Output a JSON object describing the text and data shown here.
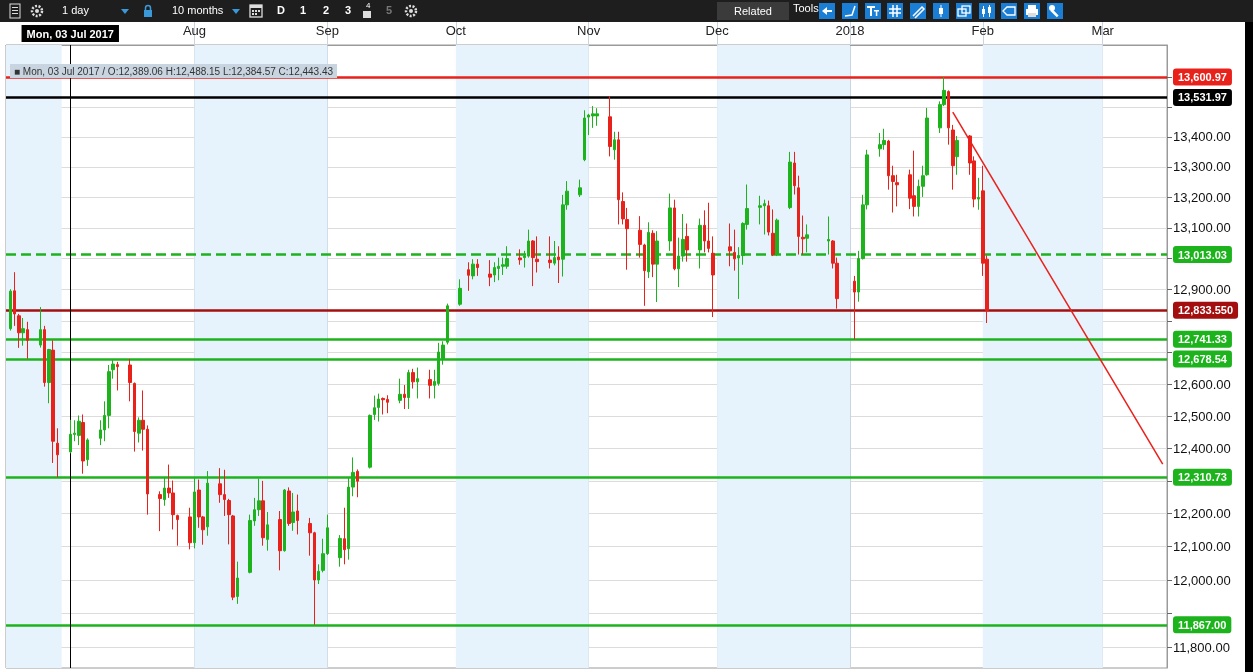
{
  "chart_data": {
    "type": "candlestick",
    "x": [
      "2017-06-19",
      "2017-06-20",
      "2017-06-21",
      "2017-06-22",
      "2017-06-23",
      "2017-06-26",
      "2017-06-27",
      "2017-06-28",
      "2017-06-29",
      "2017-06-30",
      "2017-07-03",
      "2017-07-04",
      "2017-07-05",
      "2017-07-06",
      "2017-07-07",
      "2017-07-10",
      "2017-07-11",
      "2017-07-12",
      "2017-07-13",
      "2017-07-14",
      "2017-07-17",
      "2017-07-18",
      "2017-07-19",
      "2017-07-20",
      "2017-07-21",
      "2017-07-24",
      "2017-07-25",
      "2017-07-26",
      "2017-07-27",
      "2017-07-28",
      "2017-07-31",
      "2017-08-01",
      "2017-08-02",
      "2017-08-03",
      "2017-08-04",
      "2017-08-07",
      "2017-08-08",
      "2017-08-09",
      "2017-08-10",
      "2017-08-11",
      "2017-08-14",
      "2017-08-15",
      "2017-08-16",
      "2017-08-17",
      "2017-08-18",
      "2017-08-21",
      "2017-08-22",
      "2017-08-23",
      "2017-08-24",
      "2017-08-25",
      "2017-08-28",
      "2017-08-29",
      "2017-08-30",
      "2017-08-31",
      "2017-09-01",
      "2017-09-04",
      "2017-09-05",
      "2017-09-06",
      "2017-09-07",
      "2017-09-08",
      "2017-09-11",
      "2017-09-12",
      "2017-09-13",
      "2017-09-14",
      "2017-09-15",
      "2017-09-18",
      "2017-09-19",
      "2017-09-20",
      "2017-09-21",
      "2017-09-22",
      "2017-09-25",
      "2017-09-26",
      "2017-09-27",
      "2017-09-28",
      "2017-09-29",
      "2017-10-02",
      "2017-10-04",
      "2017-10-05",
      "2017-10-06",
      "2017-10-09",
      "2017-10-10",
      "2017-10-11",
      "2017-10-12",
      "2017-10-13",
      "2017-10-16",
      "2017-10-17",
      "2017-10-18",
      "2017-10-19",
      "2017-10-20",
      "2017-10-23",
      "2017-10-24",
      "2017-10-25",
      "2017-10-26",
      "2017-10-27",
      "2017-10-30",
      "2017-10-31",
      "2017-11-01",
      "2017-11-02",
      "2017-11-03",
      "2017-11-06",
      "2017-11-07",
      "2017-11-08",
      "2017-11-09",
      "2017-11-10",
      "2017-11-13",
      "2017-11-14",
      "2017-11-15",
      "2017-11-16",
      "2017-11-17",
      "2017-11-20",
      "2017-11-21",
      "2017-11-22",
      "2017-11-23",
      "2017-11-24",
      "2017-11-27",
      "2017-11-28",
      "2017-11-29",
      "2017-11-30",
      "2017-12-04",
      "2017-12-05",
      "2017-12-06",
      "2017-12-07",
      "2017-12-08",
      "2017-12-11",
      "2017-12-12",
      "2017-12-13",
      "2017-12-14",
      "2017-12-15",
      "2017-12-18",
      "2017-12-19",
      "2017-12-20",
      "2017-12-21",
      "2017-12-22",
      "2017-12-27",
      "2017-12-28",
      "2017-12-29",
      "2018-01-02",
      "2018-01-03",
      "2018-01-04",
      "2018-01-05",
      "2018-01-08",
      "2018-01-09",
      "2018-01-10",
      "2018-01-11",
      "2018-01-12",
      "2018-01-15",
      "2018-01-16",
      "2018-01-17",
      "2018-01-18",
      "2018-01-19",
      "2018-01-22",
      "2018-01-23",
      "2018-01-24",
      "2018-01-25",
      "2018-01-26",
      "2018-01-29",
      "2018-01-30",
      "2018-01-31",
      "2018-02-01",
      "2018-02-02"
    ],
    "ohlc": [
      [
        12775,
        12901,
        12769,
        12895
      ],
      [
        12896,
        12956,
        12784,
        12822
      ],
      [
        12816,
        12822,
        12714,
        12762
      ],
      [
        12762,
        12809,
        12721,
        12775
      ],
      [
        12772,
        12797,
        12680,
        12738
      ],
      [
        12723,
        12844,
        12715,
        12772
      ],
      [
        12772,
        12784,
        12592,
        12605
      ],
      [
        12605,
        12711,
        12540,
        12709
      ],
      [
        12707,
        12738,
        12355,
        12422
      ],
      [
        12416,
        12462,
        12311,
        12380
      ],
      [
        12389.06,
        12488.15,
        12384.57,
        12443.43
      ],
      [
        12443,
        12487,
        12422,
        12447
      ],
      [
        12440,
        12502,
        12410,
        12484
      ],
      [
        12480,
        12505,
        12322,
        12361
      ],
      [
        12365,
        12431,
        12346,
        12426
      ],
      [
        12431,
        12487,
        12410,
        12457
      ],
      [
        12457,
        12546,
        12422,
        12502
      ],
      [
        12502,
        12660,
        12462,
        12639
      ],
      [
        12645,
        12679,
        12617,
        12663
      ],
      [
        12661,
        12670,
        12580,
        12655
      ],
      [
        12660,
        12679,
        12546,
        12605
      ],
      [
        12602,
        12605,
        12390,
        12452
      ],
      [
        12447,
        12496,
        12418,
        12487
      ],
      [
        12487,
        12580,
        12393,
        12459
      ],
      [
        12459,
        12471,
        12197,
        12260
      ],
      [
        12258,
        12268,
        12147,
        12246
      ],
      [
        12243,
        12309,
        12224,
        12278
      ],
      [
        12278,
        12350,
        12248,
        12263
      ],
      [
        12263,
        12301,
        12152,
        12197
      ],
      [
        12194,
        12197,
        12103,
        12182
      ],
      [
        12190,
        12218,
        12092,
        12112
      ],
      [
        12112,
        12309,
        12095,
        12266
      ],
      [
        12272,
        12304,
        12157,
        12190
      ],
      [
        12190,
        12193,
        12106,
        12151
      ],
      [
        12160,
        12330,
        12133,
        12293
      ],
      [
        12291,
        12339,
        12233,
        12258
      ],
      [
        12258,
        12334,
        12193,
        12243
      ],
      [
        12240,
        12245,
        12107,
        12197
      ],
      [
        12193,
        12196,
        11940,
        11949
      ],
      [
        11951,
        12055,
        11929,
        12006
      ],
      [
        12023,
        12197,
        12020,
        12179
      ],
      [
        12178,
        12248,
        12163,
        12212
      ],
      [
        12212,
        12307,
        12193,
        12239
      ],
      [
        12239,
        12300,
        12103,
        12127
      ],
      [
        12122,
        12205,
        12088,
        12166
      ],
      [
        12182,
        12208,
        12029,
        12088
      ],
      [
        12088,
        12275,
        12085,
        12272
      ],
      [
        12269,
        12280,
        12163,
        12170
      ],
      [
        12173,
        12263,
        12148,
        12205
      ],
      [
        12208,
        12258,
        12137,
        12179
      ],
      [
        12170,
        12187,
        12073,
        12142
      ],
      [
        12142,
        12145,
        11867,
        12000
      ],
      [
        12000,
        12047,
        11988,
        12026
      ],
      [
        12029,
        12124,
        12023,
        12079
      ],
      [
        12079,
        12197,
        12075,
        12157
      ],
      [
        12067,
        12135,
        12040,
        12125
      ],
      [
        12124,
        12218,
        12047,
        12091
      ],
      [
        12094,
        12309,
        12061,
        12281
      ],
      [
        12281,
        12372,
        12253,
        12326
      ],
      [
        12329,
        12335,
        12250,
        12299
      ],
      [
        12342,
        12505,
        12338,
        12502
      ],
      [
        12505,
        12564,
        12488,
        12526
      ],
      [
        12527,
        12570,
        12483,
        12553
      ],
      [
        12555,
        12558,
        12505,
        12551
      ],
      [
        12552,
        12565,
        12509,
        12543
      ],
      [
        12549,
        12617,
        12540,
        12568
      ],
      [
        12568,
        12597,
        12522,
        12558
      ],
      [
        12558,
        12645,
        12522,
        12636
      ],
      [
        12636,
        12648,
        12586,
        12607
      ],
      [
        12607,
        12652,
        12555,
        12617
      ],
      [
        12614,
        12645,
        12555,
        12596
      ],
      [
        12596,
        12645,
        12555,
        12608
      ],
      [
        12602,
        12730,
        12595,
        12701
      ],
      [
        12680,
        12735,
        12661,
        12723
      ],
      [
        12732,
        12855,
        12725,
        12848
      ],
      [
        12853,
        12933,
        12848,
        12904
      ],
      [
        12964,
        12988,
        12896,
        12946
      ],
      [
        12944,
        12998,
        12933,
        12982
      ],
      [
        12982,
        12998,
        12944,
        12971
      ],
      [
        12950,
        12995,
        12911,
        12940
      ],
      [
        12947,
        12988,
        12924,
        12971
      ],
      [
        12968,
        13003,
        12930,
        12975
      ],
      [
        12975,
        13003,
        12947,
        12980
      ],
      [
        12975,
        13040,
        12967,
        13000
      ],
      [
        13002,
        13030,
        12980,
        12996
      ],
      [
        13003,
        13025,
        12971,
        13008
      ],
      [
        13008,
        13094,
        13003,
        13057
      ],
      [
        13057,
        13060,
        12911,
        13003
      ],
      [
        12998,
        13072,
        12955,
        12990
      ],
      [
        12995,
        13072,
        12968,
        12987
      ],
      [
        12985,
        13057,
        12978,
        13003
      ],
      [
        13005,
        13040,
        12921,
        12996
      ],
      [
        12998,
        13208,
        12942,
        13175
      ],
      [
        13175,
        13253,
        13159,
        13220
      ],
      [
        13208,
        13258,
        13201,
        13231
      ],
      [
        13324,
        13489,
        13319,
        13463
      ],
      [
        13466,
        13477,
        13406,
        13473
      ],
      [
        13470,
        13503,
        13430,
        13477
      ],
      [
        13470,
        13496,
        13437,
        13477
      ],
      [
        13467,
        13537,
        13335,
        13368
      ],
      [
        13357,
        13417,
        13324,
        13390
      ],
      [
        13390,
        13417,
        13111,
        13192
      ],
      [
        13186,
        13216,
        13111,
        13129
      ],
      [
        13127,
        13165,
        12964,
        13097
      ],
      [
        13092,
        13138,
        13003,
        13046
      ],
      [
        13044,
        13048,
        12848,
        12961
      ],
      [
        12957,
        13118,
        12937,
        13085
      ],
      [
        13082,
        13092,
        12940,
        12982
      ],
      [
        12982,
        13089,
        12860,
        13057
      ],
      [
        13057,
        13212,
        13025,
        13165
      ],
      [
        13165,
        13192,
        12962,
        12967
      ],
      [
        12967,
        13068,
        12908,
        13008
      ],
      [
        13008,
        13145,
        12990,
        13062
      ],
      [
        13072,
        13114,
        12990,
        13028
      ],
      [
        13028,
        13130,
        12968,
        13108
      ],
      [
        13108,
        13157,
        13020,
        13057
      ],
      [
        13057,
        13182,
        13020,
        13033
      ],
      [
        13017,
        13072,
        12812,
        12947
      ],
      [
        13038,
        13114,
        12975,
        13025
      ],
      [
        13020,
        13094,
        12961,
        12999
      ],
      [
        13002,
        13037,
        12870,
        13010
      ],
      [
        13010,
        13118,
        12980,
        13114
      ],
      [
        13111,
        13242,
        13094,
        13163
      ],
      [
        13167,
        13205,
        13111,
        13172
      ],
      [
        13172,
        13192,
        13078,
        13179
      ],
      [
        13172,
        13189,
        13075,
        13086
      ],
      [
        13082,
        13160,
        13008,
        13013
      ],
      [
        13013,
        13130,
        13008,
        13125
      ],
      [
        13166,
        13350,
        13161,
        13316
      ],
      [
        13313,
        13350,
        13209,
        13238
      ],
      [
        13231,
        13271,
        13013,
        13072
      ],
      [
        13069,
        13140,
        13013,
        13064
      ],
      [
        13066,
        13111,
        13020,
        13077
      ],
      [
        13057,
        13137,
        13013,
        13062
      ],
      [
        13057,
        13060,
        12968,
        12985
      ],
      [
        12985,
        13003,
        12839,
        12871
      ],
      [
        12927,
        12944,
        12741,
        12892
      ],
      [
        12892,
        13025,
        12861,
        13000
      ],
      [
        13000,
        13208,
        12997,
        13175
      ],
      [
        13175,
        13357,
        13160,
        13340
      ],
      [
        13360,
        13413,
        13334,
        13374
      ],
      [
        13374,
        13427,
        13357,
        13388
      ],
      [
        13386,
        13390,
        13225,
        13271
      ],
      [
        13271,
        13304,
        13150,
        13252
      ],
      [
        13248,
        13274,
        13170,
        13241
      ],
      [
        13274,
        13291,
        13161,
        13197
      ],
      [
        13205,
        13354,
        13137,
        13170
      ],
      [
        13170,
        13258,
        13137,
        13236
      ],
      [
        13236,
        13304,
        13201,
        13271
      ],
      [
        13274,
        13497,
        13271,
        13463
      ],
      [
        13430,
        13519,
        13413,
        13508
      ],
      [
        13508,
        13601,
        13503,
        13556
      ],
      [
        13552,
        13556,
        13374,
        13430
      ],
      [
        13423,
        13440,
        13225,
        13304
      ],
      [
        13334,
        13403,
        13274,
        13388
      ],
      [
        13403,
        13406,
        13274,
        13313
      ],
      [
        13320,
        13335,
        13167,
        13194
      ],
      [
        13194,
        13264,
        13159,
        13199
      ],
      [
        13221,
        13304,
        12944,
        12985
      ],
      [
        12998,
        13010,
        12793,
        12833.55
      ]
    ],
    "colors": [
      "#1db31d",
      "#e8211b",
      "#e8211b",
      "#1db31d",
      "#e8211b",
      "#1db31d",
      "#e8211b",
      "#1db31d",
      "#e8211b",
      "#e8211b",
      "#1db31d",
      "#1db31d",
      "#1db31d",
      "#e8211b",
      "#1db31d",
      "#1db31d",
      "#1db31d",
      "#1db31d",
      "#1db31d",
      "#e8211b",
      "#e8211b",
      "#e8211b",
      "#1db31d",
      "#e8211b",
      "#e8211b",
      "#e8211b",
      "#1db31d",
      "#e8211b",
      "#e8211b",
      "#e8211b",
      "#e8211b",
      "#1db31d",
      "#e8211b",
      "#e8211b",
      "#1db31d",
      "#e8211b",
      "#e8211b",
      "#e8211b",
      "#e8211b",
      "#1db31d",
      "#1db31d",
      "#1db31d",
      "#1db31d",
      "#e8211b",
      "#1db31d",
      "#e8211b",
      "#1db31d",
      "#e8211b",
      "#1db31d",
      "#e8211b",
      "#e8211b",
      "#e8211b",
      "#1db31d",
      "#1db31d",
      "#1db31d",
      "#1db31d",
      "#e8211b",
      "#1db31d",
      "#1db31d",
      "#e8211b",
      "#1db31d",
      "#1db31d",
      "#1db31d",
      "#e8211b",
      "#e8211b",
      "#1db31d",
      "#e8211b",
      "#1db31d",
      "#e8211b",
      "#1db31d",
      "#e8211b",
      "#1db31d",
      "#1db31d",
      "#1db31d",
      "#1db31d",
      "#1db31d",
      "#e8211b",
      "#1db31d",
      "#e8211b",
      "#e8211b",
      "#1db31d",
      "#1db31d",
      "#1db31d",
      "#1db31d",
      "#e8211b",
      "#1db31d",
      "#1db31d",
      "#e8211b",
      "#e8211b",
      "#e8211b",
      "#1db31d",
      "#e8211b",
      "#1db31d",
      "#1db31d",
      "#1db31d",
      "#1db31d",
      "#1db31d",
      "#1db31d",
      "#1db31d",
      "#e8211b",
      "#1db31d",
      "#e8211b",
      "#e8211b",
      "#e8211b",
      "#e8211b",
      "#e8211b",
      "#1db31d",
      "#e8211b",
      "#1db31d",
      "#1db31d",
      "#e8211b",
      "#1db31d",
      "#1db31d",
      "#e8211b",
      "#1db31d",
      "#e8211b",
      "#e8211b",
      "#e8211b",
      "#e8211b",
      "#e8211b",
      "#1db31d",
      "#1db31d",
      "#1db31d",
      "#1db31d",
      "#1db31d",
      "#e8211b",
      "#e8211b",
      "#1db31d",
      "#1db31d",
      "#e8211b",
      "#e8211b",
      "#e8211b",
      "#1db31d",
      "#1db31d",
      "#e8211b",
      "#e8211b",
      "#e8211b",
      "#1db31d",
      "#1db31d",
      "#1db31d",
      "#1db31d",
      "#1db31d",
      "#e8211b",
      "#e8211b",
      "#e8211b",
      "#e8211b",
      "#e8211b",
      "#1db31d",
      "#1db31d",
      "#1db31d",
      "#1db31d",
      "#1db31d",
      "#e8211b",
      "#e8211b",
      "#1db31d",
      "#e8211b",
      "#e8211b",
      "#1db31d",
      "#e8211b",
      "#e8211b"
    ],
    "series": [
      {
        "type": "line",
        "x": [
          "2018-01-25",
          "2018-03-15"
        ],
        "values": [
          13483,
          12351
        ],
        "color": "#e8211b"
      }
    ],
    "xlim": [
      "2017-06-18",
      "2018-03-16"
    ],
    "xticks": [
      {
        "value": "2017-08-01",
        "label": "Aug"
      },
      {
        "value": "2017-09-01",
        "label": "Sep"
      },
      {
        "value": "2017-10-01",
        "label": "Oct"
      },
      {
        "value": "2017-11-01",
        "label": "Nov"
      },
      {
        "value": "2017-12-01",
        "label": "Dec"
      },
      {
        "value": "2018-01-01",
        "label": "2018"
      },
      {
        "value": "2018-02-01",
        "label": "Feb"
      },
      {
        "value": "2018-03-01",
        "label": "Mar"
      }
    ],
    "ylim": [
      11740,
      13710
    ],
    "yticks": [
      {
        "value": 11800,
        "label": "11,800.00"
      },
      {
        "value": 11900,
        "label": null
      },
      {
        "value": 12000,
        "label": "12,000.00"
      },
      {
        "value": 12100,
        "label": "12,100.00"
      },
      {
        "value": 12200,
        "label": "12,200.00"
      },
      {
        "value": 12300,
        "label": null
      },
      {
        "value": 12400,
        "label": "12,400.00"
      },
      {
        "value": 12500,
        "label": "12,500.00"
      },
      {
        "value": 12600,
        "label": "12,600.00"
      },
      {
        "value": 12700,
        "label": null
      },
      {
        "value": 12800,
        "label": null
      },
      {
        "value": 12900,
        "label": "12,900.00"
      },
      {
        "value": 13000,
        "label": null
      },
      {
        "value": 13100,
        "label": "13,100.00"
      },
      {
        "value": 13200,
        "label": "13,200.00"
      },
      {
        "value": 13300,
        "label": "13,300.00"
      },
      {
        "value": 13400,
        "label": "13,400.00"
      },
      {
        "value": 13500,
        "label": null
      },
      {
        "value": 13600,
        "label": null
      }
    ],
    "log": true,
    "grid": true,
    "ref_lines": [
      {
        "axis": "y",
        "value": 13600.97,
        "label": "13,600.97",
        "color": "#e8211b"
      },
      {
        "axis": "y",
        "value": 13531.97,
        "label": "13,531.97",
        "color": "#000000"
      },
      {
        "axis": "y",
        "value": 13013.03,
        "label": "13,013.03",
        "color": "#1db31d",
        "line_style": "dashed"
      },
      {
        "axis": "y",
        "value": 12833.55,
        "label": "12,833.550",
        "color": "#a30f0f"
      },
      {
        "axis": "y",
        "value": 12741.33,
        "label": "12,741.33",
        "color": "#1db31d"
      },
      {
        "axis": "y",
        "value": 12678.54,
        "label": "12,678.54",
        "color": "#1db31d"
      },
      {
        "axis": "y",
        "value": 12310.73,
        "label": "12,310.73",
        "color": "#1db31d"
      },
      {
        "axis": "y",
        "value": 11867.0,
        "label": "11,867.00",
        "color": "#1db31d"
      },
      {
        "axis": "x",
        "value": "2017-07-03",
        "label": "Mon, 03 Jul 2017",
        "color": "#000000"
      }
    ],
    "bands": [
      {
        "axis": "x",
        "from": "2017-06-18",
        "to": "2017-07-01",
        "color": "#e6f3fc"
      },
      {
        "axis": "x",
        "from": "2017-08-01",
        "to": "2017-09-01",
        "color": "#e6f3fc"
      },
      {
        "axis": "x",
        "from": "2017-10-01",
        "to": "2017-11-01",
        "color": "#e6f3fc"
      },
      {
        "axis": "x",
        "from": "2017-12-01",
        "to": "2018-01-01",
        "color": "#e6f3fc"
      },
      {
        "axis": "x",
        "from": "2018-02-01",
        "to": "2018-03-01",
        "color": "#e6f3fc"
      }
    ],
    "annotations": [
      "■ Mon, 03 Jul 2017 / O:12,389.06 H:12,488.15 L:12,384.57 C:12,443.43",
      "1 day",
      "10 months",
      "D",
      "1",
      "2",
      "3",
      "4",
      "5",
      "Related",
      "Tools"
    ]
  }
}
